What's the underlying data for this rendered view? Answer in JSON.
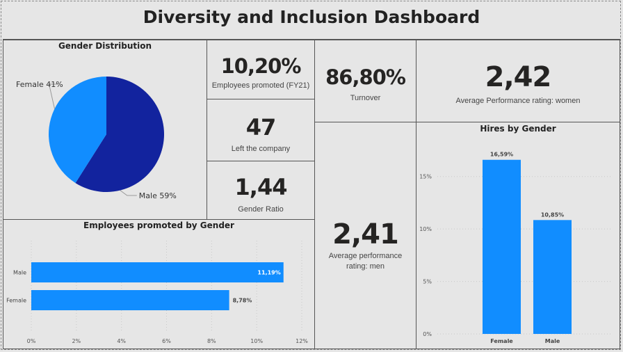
{
  "dashboard": {
    "title": "Diversity and Inclusion Dashboard"
  },
  "kpis": {
    "promoted": {
      "value": "10,20%",
      "label": "Employees promoted (FY21)"
    },
    "left": {
      "value": "47",
      "label": "Left the company"
    },
    "gender_ratio": {
      "value": "1,44",
      "label": "Gender Ratio"
    },
    "turnover": {
      "value": "86,80%",
      "label": "Turnover"
    },
    "perf_women": {
      "value": "2,42",
      "label": "Average Performance rating: women"
    },
    "perf_men": {
      "value": "2,41",
      "label_line1": "Average performance",
      "label_line2": "rating: men"
    }
  },
  "charts": {
    "gender_distribution": {
      "title": "Gender Distribution",
      "chart_data": {
        "type": "pie",
        "slices": [
          {
            "label": "Female",
            "value": 41,
            "display": "Female 41%",
            "color": "#118dff"
          },
          {
            "label": "Male",
            "value": 59,
            "display": "Male 59%",
            "color": "#12239e"
          }
        ]
      }
    },
    "promoted_by_gender": {
      "title": "Employees promoted by Gender",
      "chart_data": {
        "type": "bar",
        "orientation": "horizontal",
        "categories": [
          "Male",
          "Female"
        ],
        "values": [
          11.19,
          8.78
        ],
        "labels": [
          "11,19%",
          "8,78%"
        ],
        "xlim": [
          0,
          12
        ],
        "ticks": [
          "0%",
          "2%",
          "4%",
          "6%",
          "8%",
          "10%",
          "12%"
        ],
        "grid": true,
        "color": "#118dff"
      }
    },
    "hires_by_gender": {
      "title": "Hires by Gender",
      "chart_data": {
        "type": "bar",
        "orientation": "vertical",
        "categories": [
          "Female",
          "Male"
        ],
        "values": [
          16.59,
          10.85
        ],
        "labels": [
          "16,59%",
          "10,85%"
        ],
        "ylim": [
          0,
          17.5
        ],
        "ticks": [
          0,
          5,
          10,
          15
        ],
        "tick_labels": [
          "0%",
          "5%",
          "10%",
          "15%"
        ],
        "grid": true,
        "color": "#118dff"
      }
    }
  }
}
